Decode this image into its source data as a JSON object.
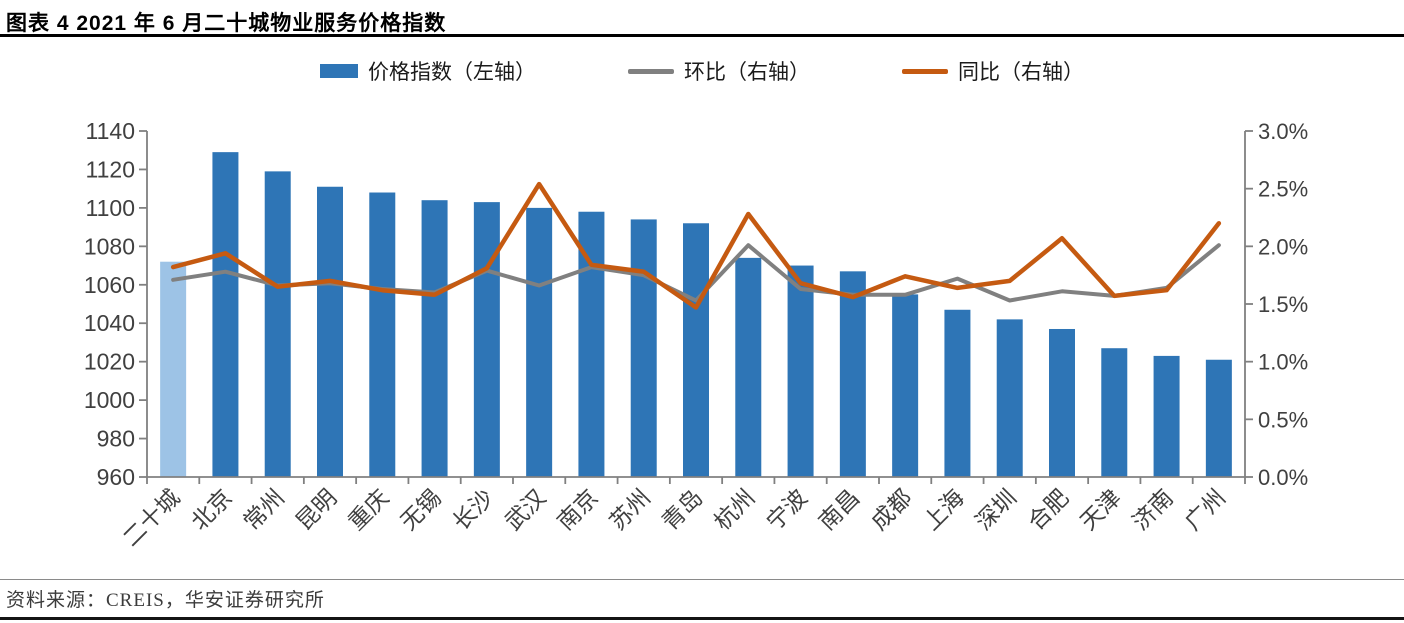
{
  "header": {
    "title": "图表 4  2021 年 6 月二十城物业服务价格指数"
  },
  "legend": [
    {
      "label": "价格指数（左轴）",
      "type": "bar",
      "color": "#2E75B6"
    },
    {
      "label": "环比（右轴）",
      "type": "line",
      "color": "#808080"
    },
    {
      "label": "同比（右轴）",
      "type": "line",
      "color": "#C55A11"
    }
  ],
  "footer": {
    "source": "资料来源：CREIS，华安证券研究所"
  },
  "chart_data": {
    "type": "bar",
    "subtype": "bar-line-combo",
    "title": "2021年6月二十城物业服务价格指数",
    "grid": false,
    "legend_position": "top",
    "categories": [
      "二十城",
      "北京",
      "常州",
      "昆明",
      "重庆",
      "无锡",
      "长沙",
      "武汉",
      "南京",
      "苏州",
      "青岛",
      "杭州",
      "宁波",
      "南昌",
      "成都",
      "上海",
      "深圳",
      "合肥",
      "天津",
      "济南",
      "广州"
    ],
    "series": [
      {
        "name": "价格指数（左轴）",
        "type": "bar",
        "axis": "left",
        "color": "#2E75B6",
        "highlight_index": 0,
        "highlight_color": "#9DC3E6",
        "values": [
          1072,
          1129,
          1119,
          1111,
          1108,
          1104,
          1103,
          1100,
          1098,
          1094,
          1092,
          1074,
          1070,
          1067,
          1055,
          1047,
          1042,
          1037,
          1027,
          1023,
          1021
        ]
      },
      {
        "name": "环比（右轴）",
        "type": "line",
        "axis": "right",
        "color": "#808080",
        "values": [
          1.71,
          1.78,
          1.66,
          1.68,
          1.63,
          1.6,
          1.79,
          1.66,
          1.82,
          1.75,
          1.53,
          2.01,
          1.63,
          1.58,
          1.58,
          1.72,
          1.53,
          1.61,
          1.57,
          1.64,
          2.01
        ]
      },
      {
        "name": "同比（右轴）",
        "type": "line",
        "axis": "right",
        "color": "#C55A11",
        "values": [
          1.82,
          1.94,
          1.65,
          1.7,
          1.62,
          1.58,
          1.81,
          2.54,
          1.84,
          1.78,
          1.47,
          2.28,
          1.68,
          1.56,
          1.74,
          1.64,
          1.7,
          2.07,
          1.57,
          1.62,
          2.2
        ]
      }
    ],
    "left_axis": {
      "min": 960,
      "max": 1140,
      "step": 20,
      "tick_labels": [
        "1140",
        "1120",
        "1100",
        "1080",
        "1060",
        "1040",
        "1020",
        "1000",
        "980",
        "960"
      ]
    },
    "right_axis": {
      "min": 0,
      "max": 3.0,
      "step": 0.5,
      "tick_labels": [
        "3.0%",
        "2.5%",
        "2.0%",
        "1.5%",
        "1.0%",
        "0.5%",
        "0.0%"
      ]
    },
    "axis_color": "#808080",
    "label_color": "#404040"
  }
}
